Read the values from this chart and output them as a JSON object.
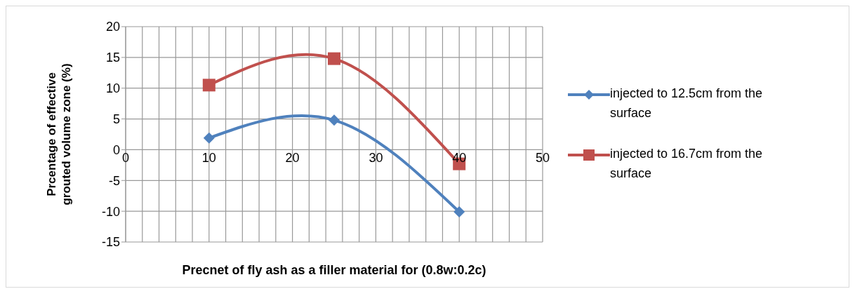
{
  "chart_data": {
    "type": "line",
    "xlabel": "Precnet of fly ash as a filler material for (0.8w:0.2c)",
    "ylabel": "Prcentage of effective grouted volume zone (%)",
    "x": [
      10,
      25,
      40
    ],
    "series": [
      {
        "name": "injected to 12.5cm from the surface",
        "color": "#4f81bd",
        "marker": "diamond",
        "values": [
          1.9,
          4.8,
          -10.1
        ]
      },
      {
        "name": "injected to 16.7cm from the surface",
        "color": "#c0504d",
        "marker": "square",
        "values": [
          10.5,
          14.8,
          -2.3
        ]
      }
    ],
    "xlim": [
      0,
      50
    ],
    "xticks": [
      0,
      {
        "value": 2,
        "label": null
      },
      {
        "value": 4,
        "label": null
      },
      {
        "value": 6,
        "label": null
      },
      {
        "value": 8,
        "label": null
      },
      10,
      {
        "value": 12,
        "label": null
      },
      {
        "value": 14,
        "label": null
      },
      {
        "value": 16,
        "label": null
      },
      {
        "value": 18,
        "label": null
      },
      20,
      {
        "value": 22,
        "label": null
      },
      {
        "value": 24,
        "label": null
      },
      {
        "value": 26,
        "label": null
      },
      {
        "value": 28,
        "label": null
      },
      30,
      {
        "value": 32,
        "label": null
      },
      {
        "value": 34,
        "label": null
      },
      {
        "value": 36,
        "label": null
      },
      {
        "value": 38,
        "label": null
      },
      40,
      {
        "value": 42,
        "label": null
      },
      {
        "value": 44,
        "label": null
      },
      {
        "value": 46,
        "label": null
      },
      {
        "value": 48,
        "label": null
      },
      50
    ],
    "ylim": [
      -15,
      20
    ],
    "yticks": [
      -15,
      -10,
      -5,
      0,
      5,
      10,
      15,
      20
    ],
    "grid": true,
    "legend": "right"
  }
}
